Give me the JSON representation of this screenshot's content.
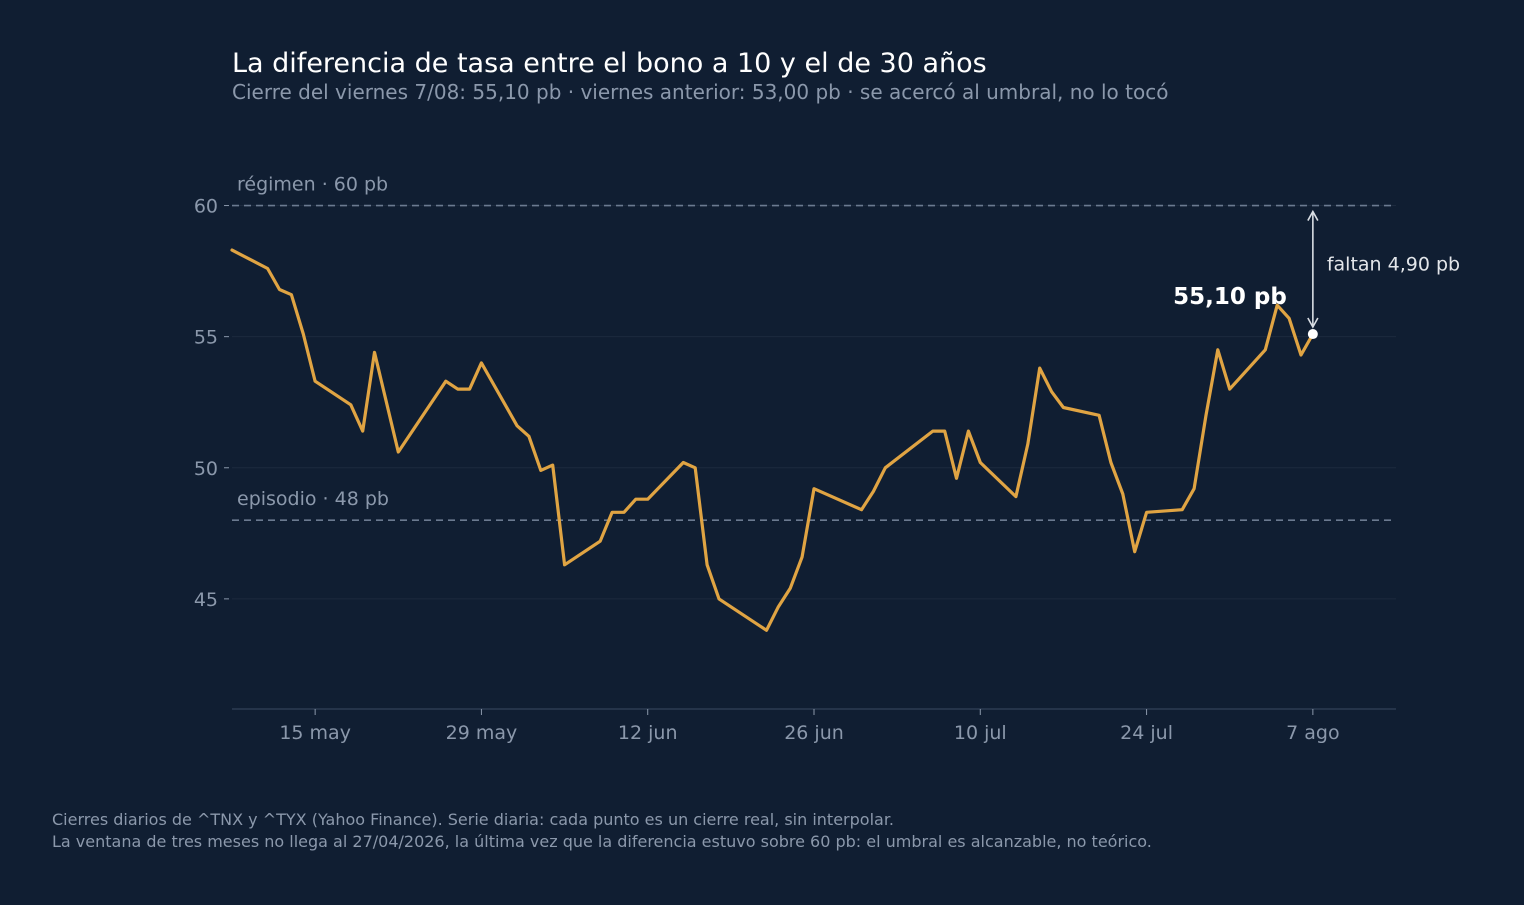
{
  "header": {
    "title": "La diferencia de tasa entre el bono a 10 y el de 30 años",
    "subtitle": "Cierre del viernes 7/08: 55,10 pb  ·  viernes anterior: 53,00 pb  ·  se acercó al umbral, no lo tocó"
  },
  "chart_data": {
    "type": "line",
    "x_start": "2026-05-08",
    "x_unit": "days",
    "ylim": [
      40.8,
      62.5
    ],
    "yticks": [
      45,
      50,
      55,
      60
    ],
    "ytick_labels": [
      "45",
      "50",
      "55",
      "60"
    ],
    "xticks": [
      {
        "day": 7,
        "label": "15 may"
      },
      {
        "day": 21,
        "label": "29 may"
      },
      {
        "day": 35,
        "label": "12 jun"
      },
      {
        "day": 49,
        "label": "26 jun"
      },
      {
        "day": 63,
        "label": "10 jul"
      },
      {
        "day": 77,
        "label": "24 jul"
      },
      {
        "day": 91,
        "label": "7 ago"
      }
    ],
    "xlim": [
      0,
      98
    ],
    "reference_lines": [
      {
        "value": 60,
        "label": "régimen · 60 pb"
      },
      {
        "value": 48,
        "label": "episodio · 48 pb"
      }
    ],
    "series": [
      {
        "name": "",
        "color": "#e0a443",
        "points": [
          [
            0,
            58.3
          ],
          [
            3,
            57.6
          ],
          [
            4,
            56.8
          ],
          [
            5,
            56.6
          ],
          [
            6,
            55.1
          ],
          [
            7,
            53.3
          ],
          [
            10,
            52.4
          ],
          [
            11,
            51.4
          ],
          [
            12,
            54.4
          ],
          [
            14,
            50.6
          ],
          [
            18,
            53.3
          ],
          [
            19,
            53.0
          ],
          [
            20,
            53.0
          ],
          [
            21,
            54.0
          ],
          [
            24,
            51.6
          ],
          [
            25,
            51.2
          ],
          [
            26,
            49.9
          ],
          [
            27,
            50.1
          ],
          [
            28,
            46.3
          ],
          [
            31,
            47.2
          ],
          [
            32,
            48.3
          ],
          [
            33,
            48.3
          ],
          [
            34,
            48.8
          ],
          [
            35,
            48.8
          ],
          [
            38,
            50.2
          ],
          [
            39,
            50.0
          ],
          [
            40,
            46.3
          ],
          [
            41,
            45.0
          ],
          [
            45,
            43.8
          ],
          [
            46,
            44.7
          ],
          [
            47,
            45.4
          ],
          [
            48,
            46.6
          ],
          [
            49,
            49.2
          ],
          [
            53,
            48.4
          ],
          [
            54,
            49.1
          ],
          [
            55,
            50.0
          ],
          [
            59,
            51.4
          ],
          [
            60,
            51.4
          ],
          [
            61,
            49.6
          ],
          [
            62,
            51.4
          ],
          [
            63,
            50.2
          ],
          [
            66,
            48.9
          ],
          [
            67,
            50.9
          ],
          [
            68,
            53.8
          ],
          [
            69,
            52.9
          ],
          [
            70,
            52.3
          ],
          [
            73,
            52.0
          ],
          [
            74,
            50.2
          ],
          [
            75,
            49.0
          ],
          [
            76,
            46.8
          ],
          [
            77,
            48.3
          ],
          [
            80,
            48.4
          ],
          [
            81,
            49.2
          ],
          [
            82,
            52.0
          ],
          [
            83,
            54.5
          ],
          [
            84,
            53.0
          ],
          [
            87,
            54.5
          ],
          [
            88,
            56.2
          ],
          [
            89,
            55.7
          ],
          [
            90,
            54.3
          ],
          [
            91,
            55.1
          ]
        ]
      }
    ],
    "last_point": {
      "day": 91,
      "value": 55.1,
      "label": "55,10 pb"
    },
    "gap_annotation": {
      "from": 55.1,
      "to": 60,
      "label": "faltan 4,90 pb"
    },
    "colors": {
      "background": "#101e32",
      "line": "#e0a443",
      "text": "#8b98ab",
      "reference": "#6b7a90",
      "grid": "#1c2a3e"
    }
  },
  "footer": {
    "line1": "Cierres diarios de ^TNX y ^TYX (Yahoo Finance). Serie diaria: cada punto es un cierre real, sin interpolar.",
    "line2": "La ventana de tres meses no llega al 27/04/2026, la última vez que la diferencia estuvo sobre 60 pb: el umbral es alcanzable, no teórico."
  }
}
